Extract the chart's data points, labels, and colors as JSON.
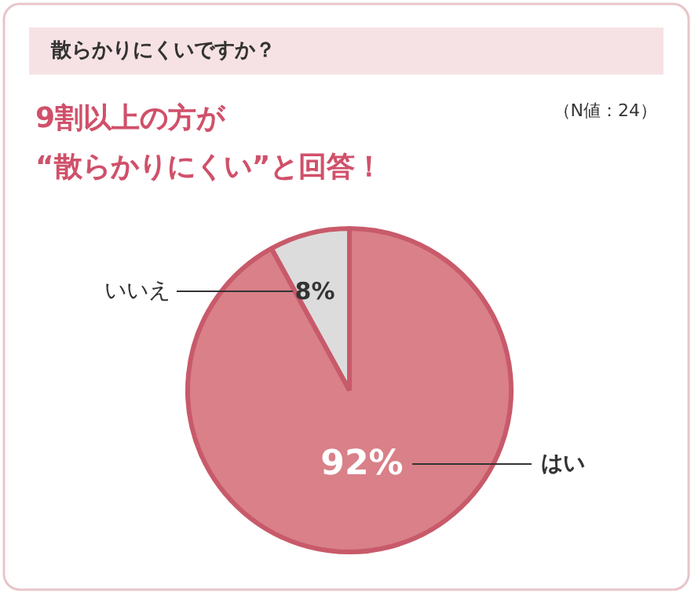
{
  "chart_data": {
    "type": "pie",
    "title": "散らかりにくいですか？",
    "subtitle": "9割以上の方が\n“散らかりにくい”と回答！",
    "annotations": [
      "（N値：24）"
    ],
    "categories": [
      "はい",
      "いいえ"
    ],
    "values": [
      92,
      8
    ],
    "colors": [
      "#d98088",
      "#dcdcdc"
    ],
    "value_labels": [
      "92%",
      "8%"
    ]
  }
}
